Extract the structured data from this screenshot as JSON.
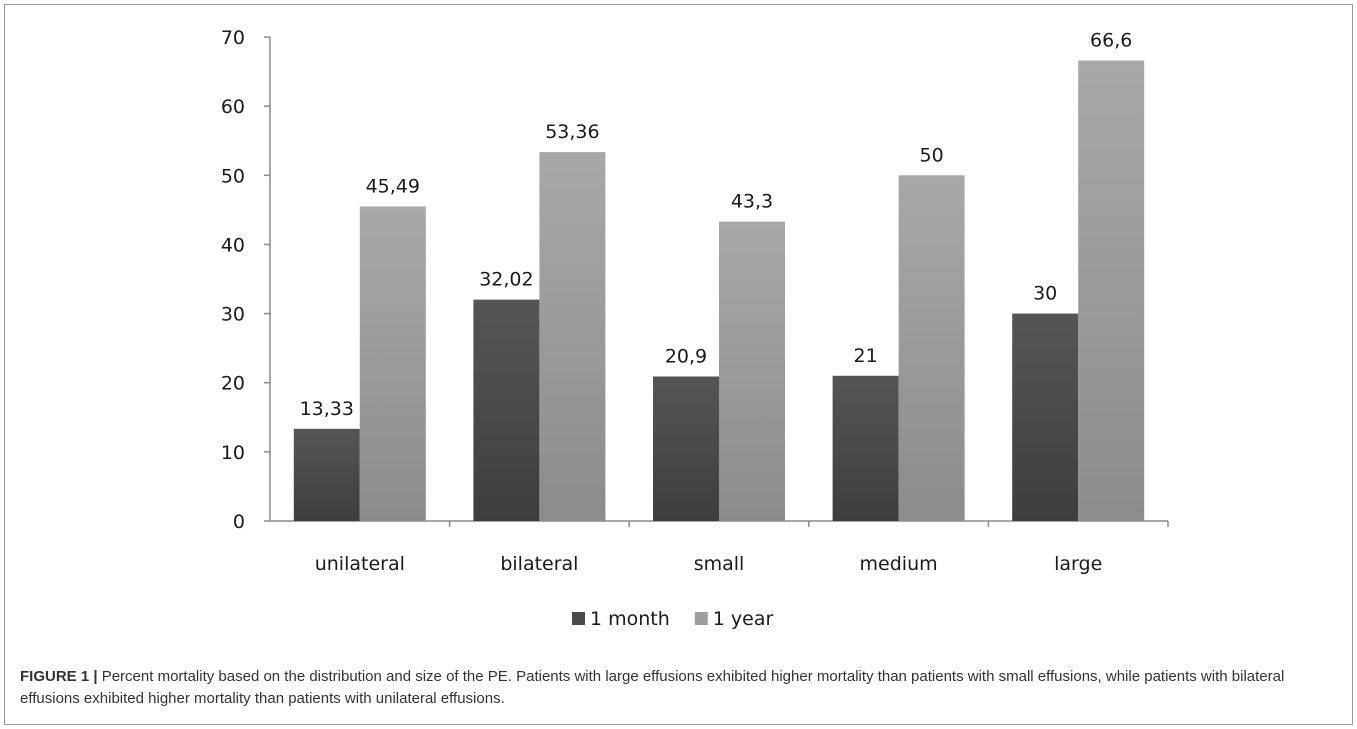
{
  "chart_data": {
    "type": "bar",
    "categories": [
      "unilateral",
      "bilateral",
      "small",
      "medium",
      "large"
    ],
    "series": [
      {
        "name": "1 month",
        "values": [
          13.33,
          32.02,
          20.9,
          21,
          30
        ],
        "labels": [
          "13,33",
          "32,02",
          "20,9",
          "21",
          "30"
        ],
        "color": "#4a4a4a"
      },
      {
        "name": "1 year",
        "values": [
          45.49,
          53.36,
          43.3,
          50,
          66.6
        ],
        "labels": [
          "45,49",
          "53,36",
          "43,3",
          "50",
          "66,6"
        ],
        "color": "#9e9e9e"
      }
    ],
    "ylim": [
      0,
      70
    ],
    "yticks": [
      0,
      10,
      20,
      30,
      40,
      50,
      60,
      70
    ],
    "title": "",
    "xlabel": "",
    "ylabel": "",
    "grid": false,
    "legend_position": "bottom"
  },
  "caption": {
    "label": "FIGURE 1 |",
    "text": " Percent mortality based on the distribution and size of the PE. Patients with large effusions exhibited higher mortality than patients with small effusions, while patients with bilateral effusions exhibited higher mortality than patients with unilateral effusions."
  }
}
